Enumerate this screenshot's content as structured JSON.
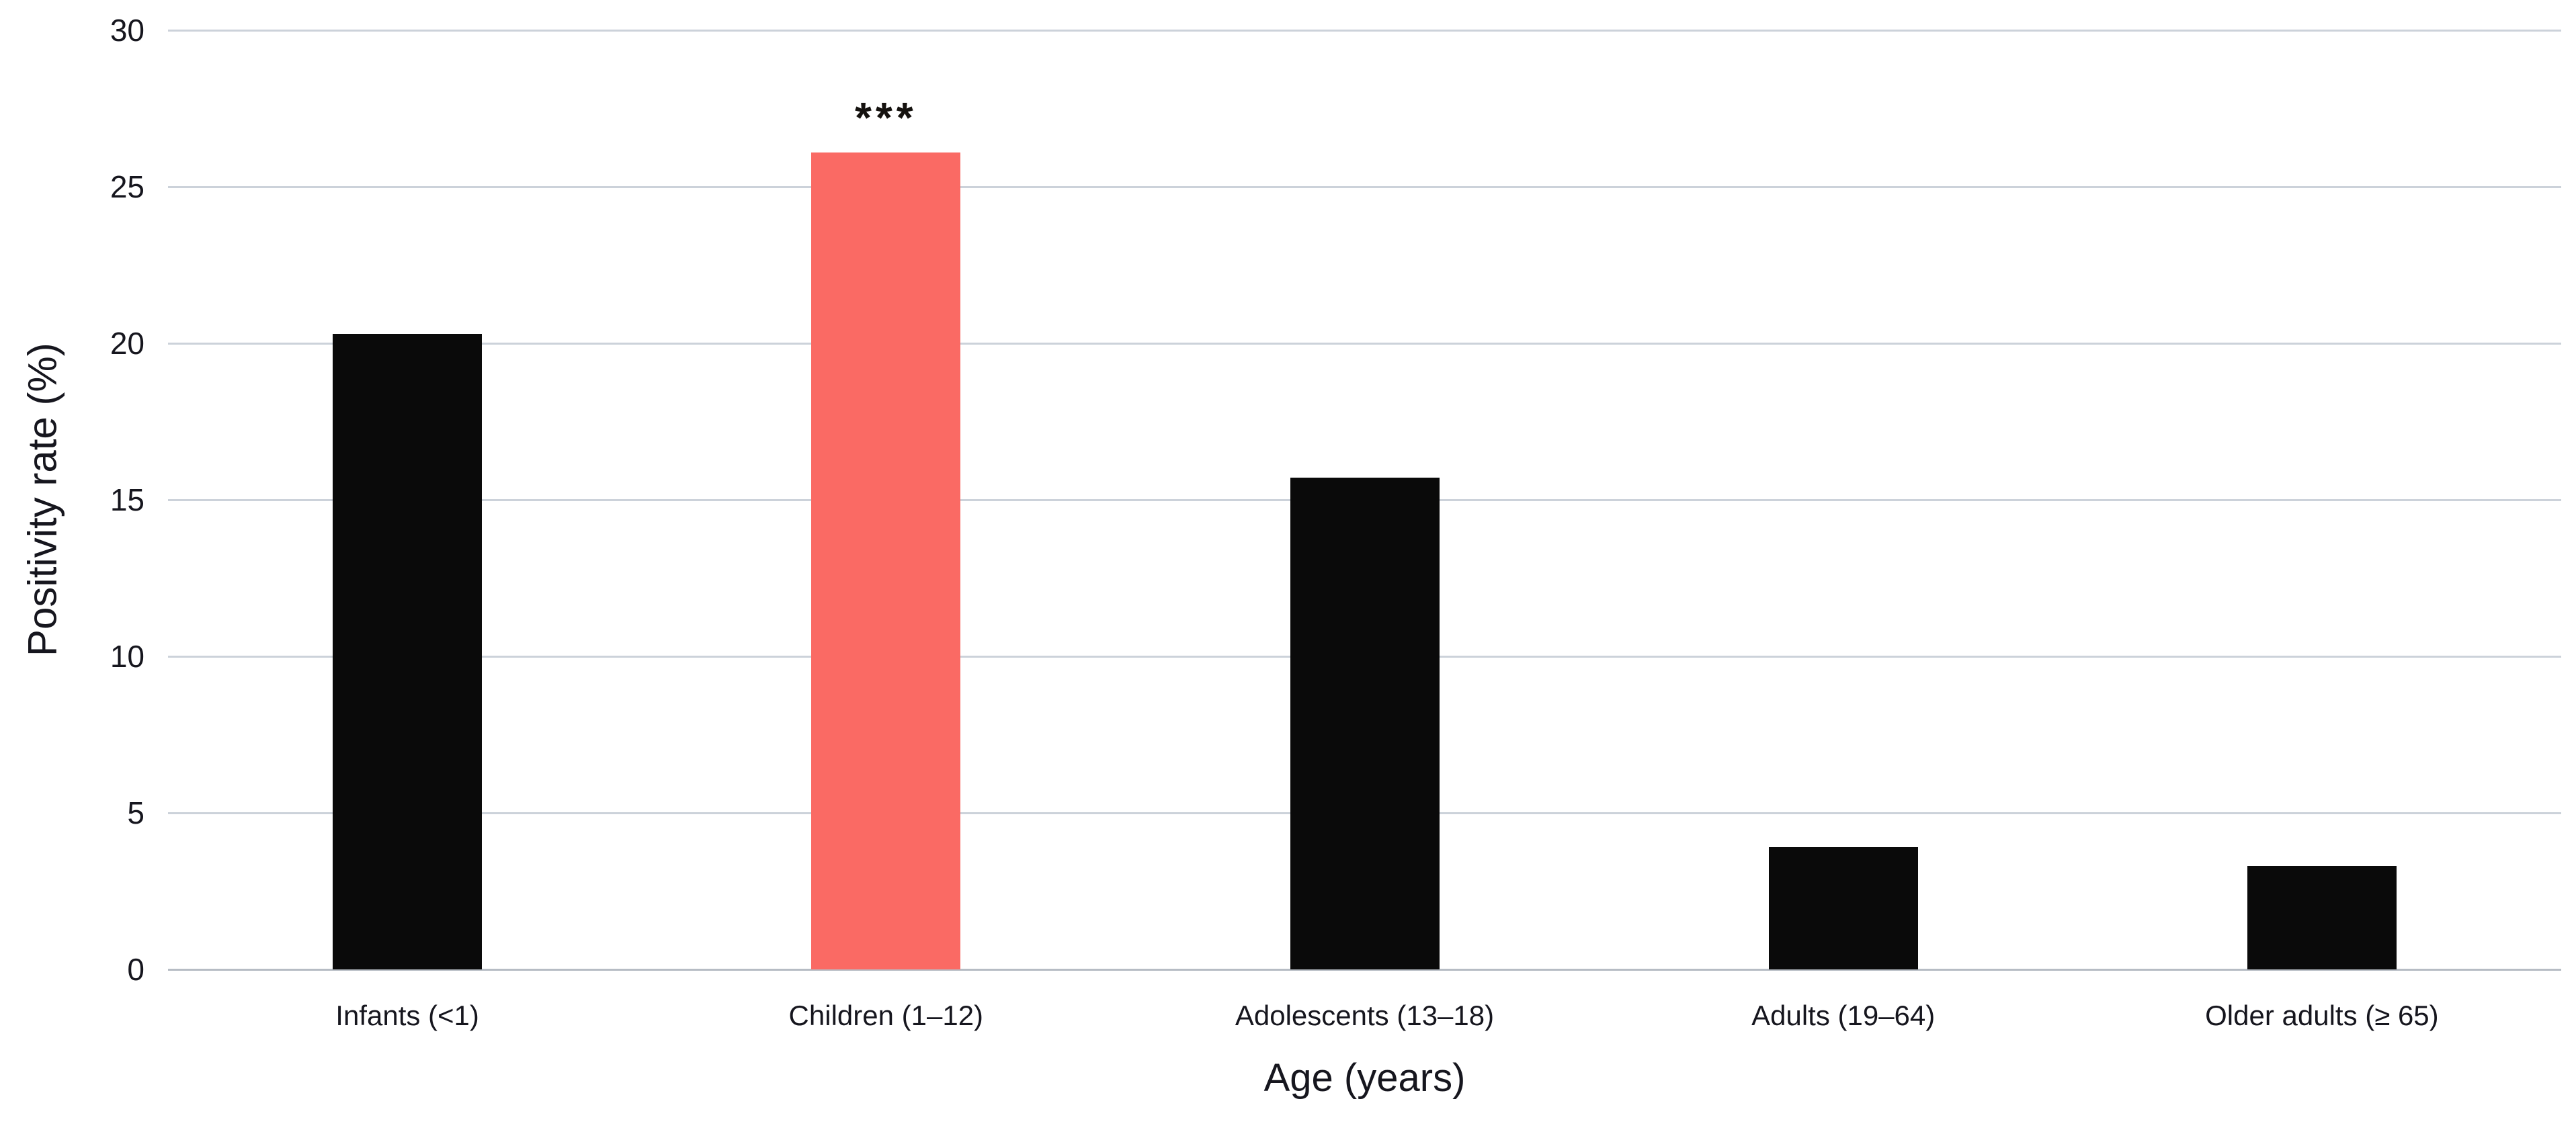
{
  "chart_data": {
    "type": "bar",
    "title": "",
    "xlabel": "Age (years)",
    "ylabel": "Positivity rate (%)",
    "categories": [
      "Infants (<1)",
      "Children (1–12)",
      "Adolescents (13–18)",
      "Adults (19–64)",
      "Older adults (≥ 65)"
    ],
    "values": [
      20.3,
      26.1,
      15.7,
      3.9,
      3.3
    ],
    "ylim": [
      0,
      30
    ],
    "yticks": [
      0,
      5,
      10,
      15,
      20,
      25,
      30
    ],
    "grid": true,
    "legend_position": "none",
    "highlight_index": 1,
    "annotation": {
      "text": "***",
      "category_index": 1
    },
    "colors": {
      "bar_default": "#0a0a0a",
      "bar_highlight": "#fa6a64",
      "gridline": "#ccd2da",
      "baseline": "#b6bcc4",
      "text": "#16161e"
    }
  }
}
